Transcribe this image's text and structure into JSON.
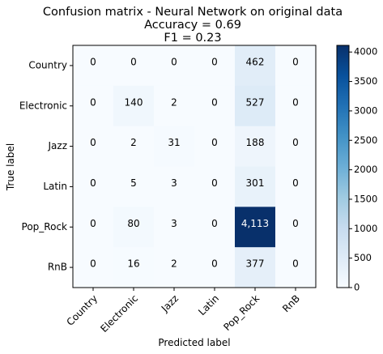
{
  "chart_data": {
    "type": "heatmap",
    "title_lines": [
      "Confusion matrix - Neural Network on original data",
      "Accuracy = 0.69",
      "F1 = 0.23"
    ],
    "xlabel": "Predicted label",
    "ylabel": "True label",
    "row_labels": [
      "Country",
      "Electronic",
      "Jazz",
      "Latin",
      "Pop_Rock",
      "RnB"
    ],
    "col_labels": [
      "Country",
      "Electronic",
      "Jazz",
      "Latin",
      "Pop_Rock",
      "RnB"
    ],
    "values": [
      [
        0,
        0,
        0,
        0,
        462,
        0
      ],
      [
        0,
        140,
        2,
        0,
        527,
        0
      ],
      [
        0,
        2,
        31,
        0,
        188,
        0
      ],
      [
        0,
        5,
        3,
        0,
        301,
        0
      ],
      [
        0,
        80,
        3,
        0,
        4113,
        0
      ],
      [
        0,
        16,
        2,
        0,
        377,
        0
      ]
    ],
    "cell_labels": [
      [
        "0",
        "0",
        "0",
        "0",
        "462",
        "0"
      ],
      [
        "0",
        "140",
        "2",
        "0",
        "527",
        "0"
      ],
      [
        "0",
        "2",
        "31",
        "0",
        "188",
        "0"
      ],
      [
        "0",
        "5",
        "3",
        "0",
        "301",
        "0"
      ],
      [
        "0",
        "80",
        "3",
        "0",
        "4,113",
        "0"
      ],
      [
        "0",
        "16",
        "2",
        "0",
        "377",
        "0"
      ]
    ],
    "colorbar": {
      "colormap": "Blues",
      "vmin": 0,
      "vmax": 4113,
      "ticks": [
        0,
        500,
        1000,
        1500,
        2000,
        2500,
        3000,
        3500,
        4000
      ]
    },
    "grid": false
  }
}
